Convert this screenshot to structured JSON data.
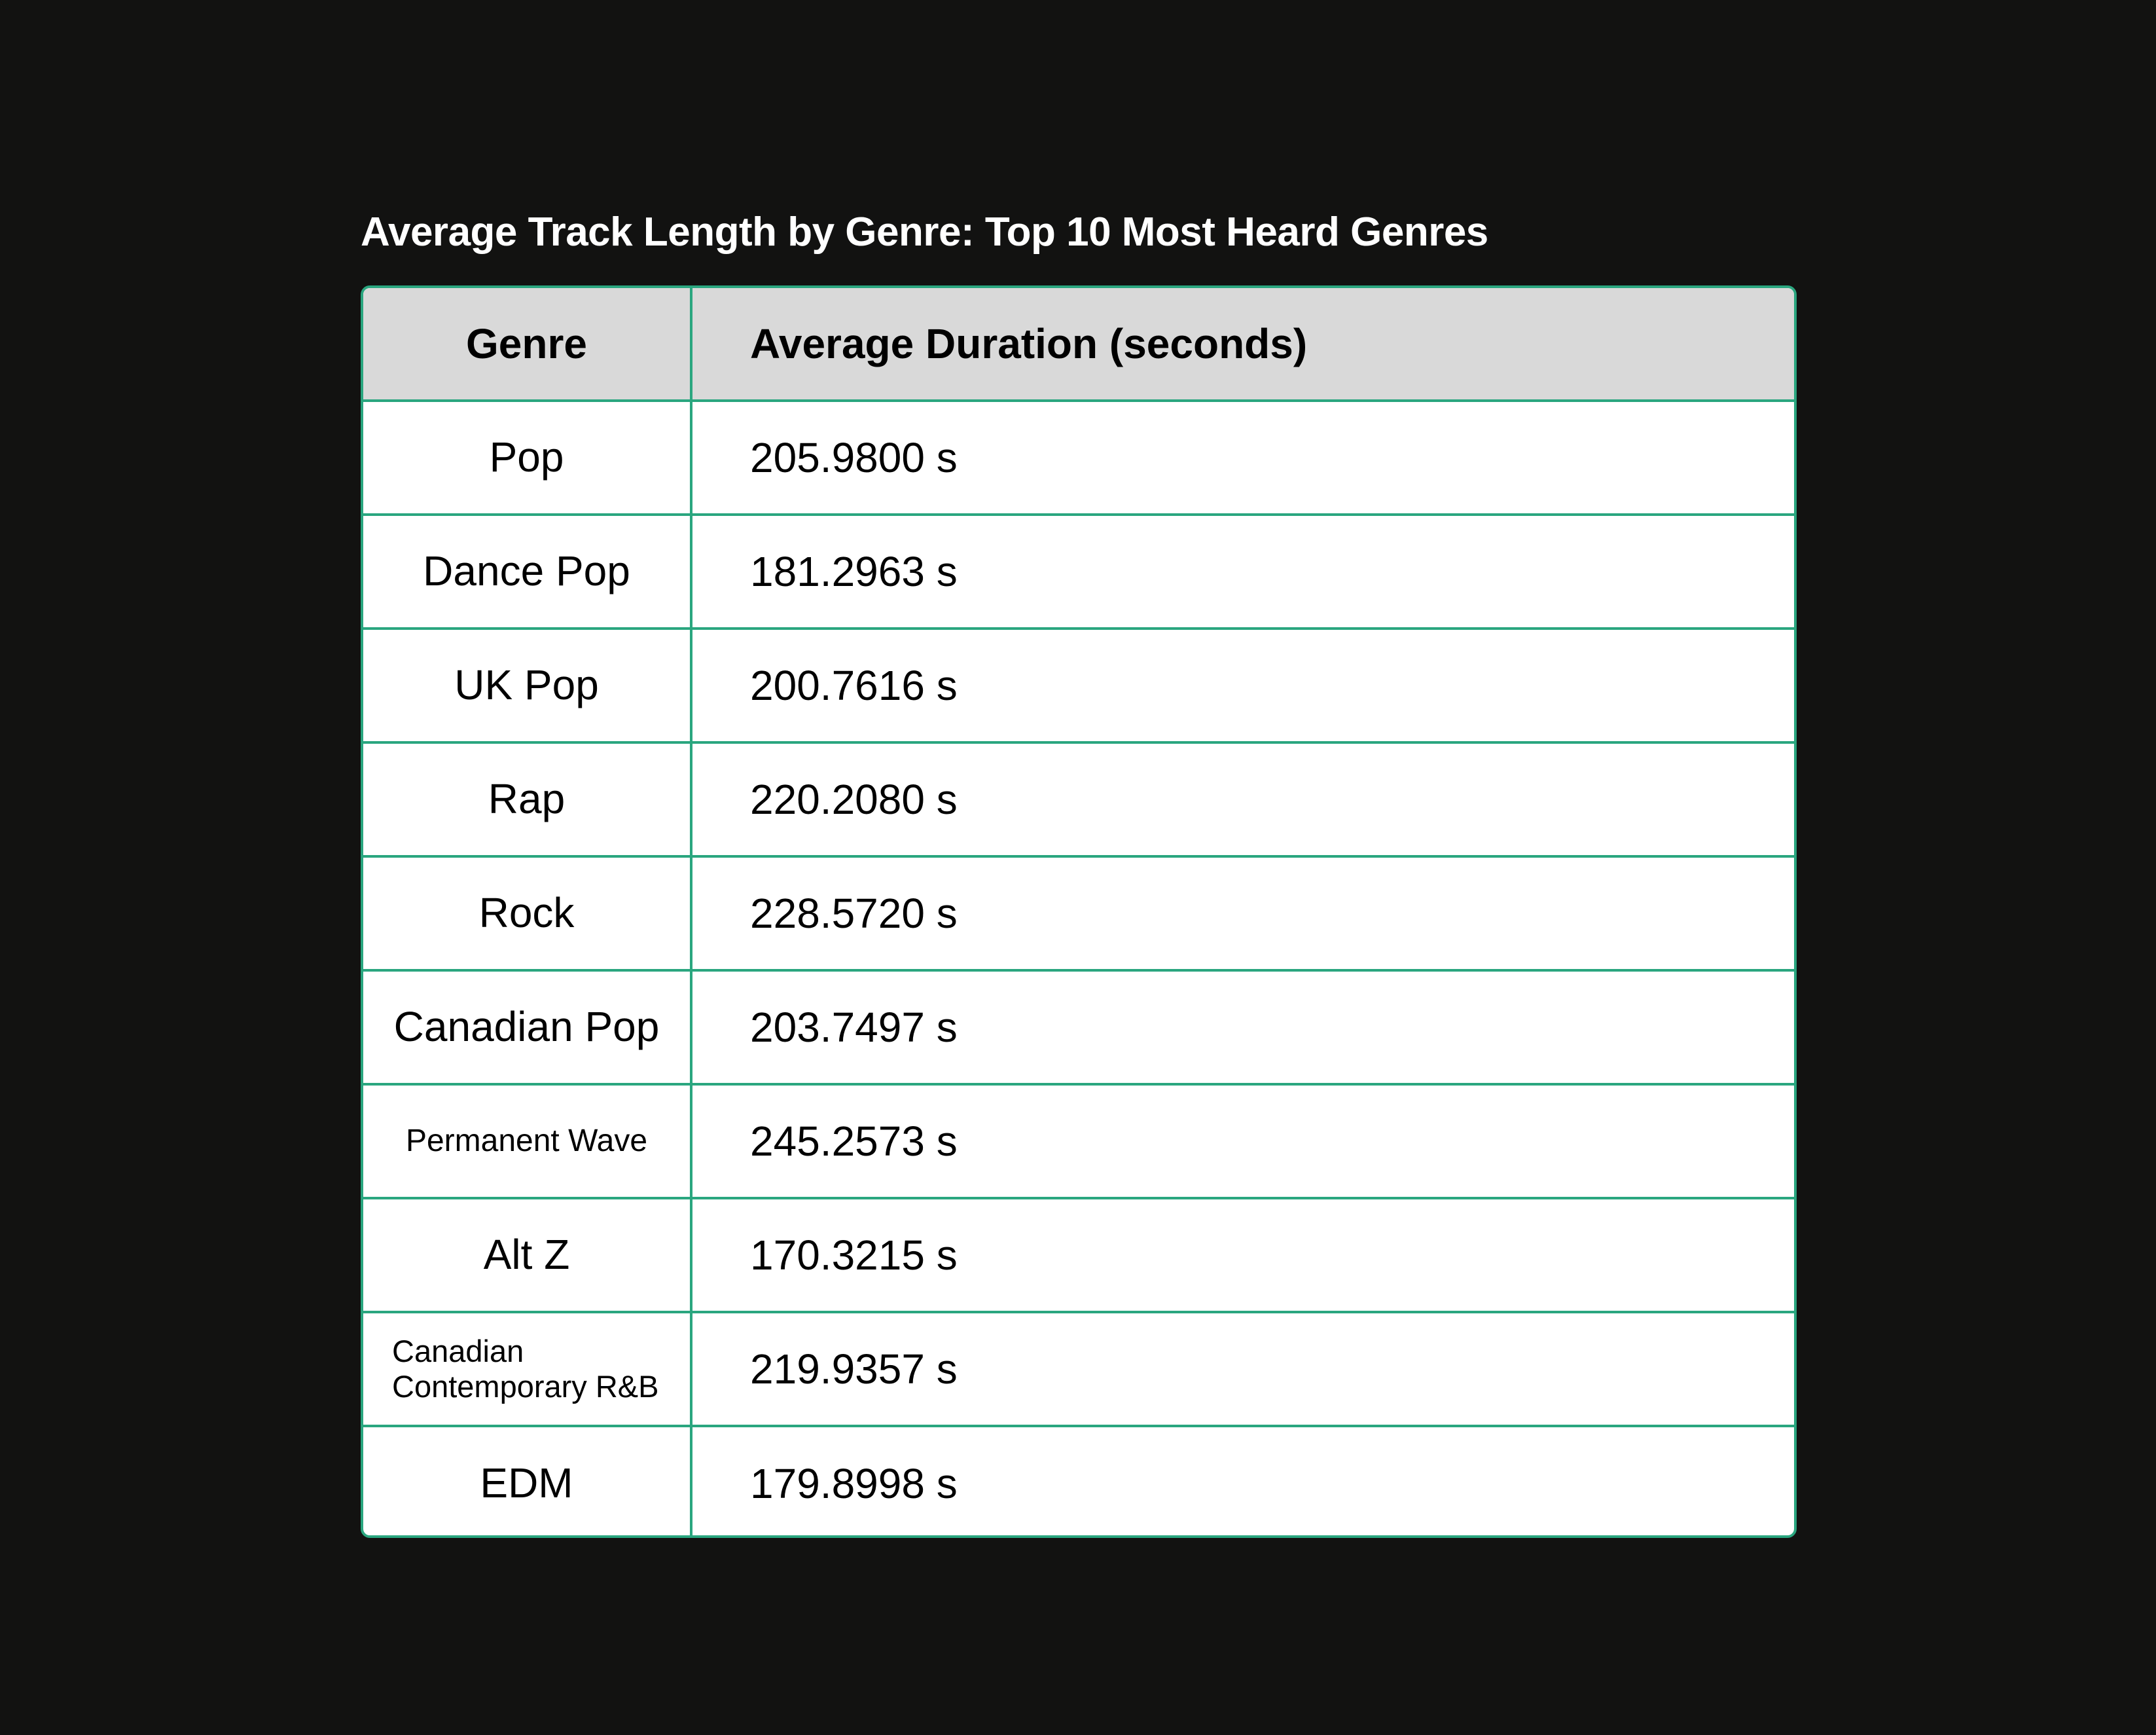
{
  "chart_data": {
    "type": "table",
    "title": "Average Track Length by Genre: Top 10 Most Heard Genres",
    "columns": [
      "Genre",
      "Average Duration (seconds)"
    ],
    "rows": [
      {
        "genre": "Pop",
        "duration": "205.9800 s",
        "value": 205.98
      },
      {
        "genre": "Dance Pop",
        "duration": "181.2963 s",
        "value": 181.2963
      },
      {
        "genre": "UK Pop",
        "duration": "200.7616 s",
        "value": 200.7616
      },
      {
        "genre": "Rap",
        "duration": "220.2080 s",
        "value": 220.208
      },
      {
        "genre": "Rock",
        "duration": "228.5720 s",
        "value": 228.572
      },
      {
        "genre": "Canadian Pop",
        "duration": "203.7497 s",
        "value": 203.7497
      },
      {
        "genre": "Permanent Wave",
        "duration": "245.2573 s",
        "value": 245.2573
      },
      {
        "genre": "Alt Z",
        "duration": "170.3215 s",
        "value": 170.3215
      },
      {
        "genre": "Canadian Contemporary R&B",
        "duration": "219.9357 s",
        "value": 219.9357
      },
      {
        "genre": "EDM",
        "duration": "179.8998 s",
        "value": 179.8998
      }
    ]
  },
  "colors": {
    "background": "#121211",
    "border": "#2aa67f",
    "header_fill": "#d9d9d9",
    "cell_fill": "#ffffff",
    "title_text": "#ffffff"
  }
}
